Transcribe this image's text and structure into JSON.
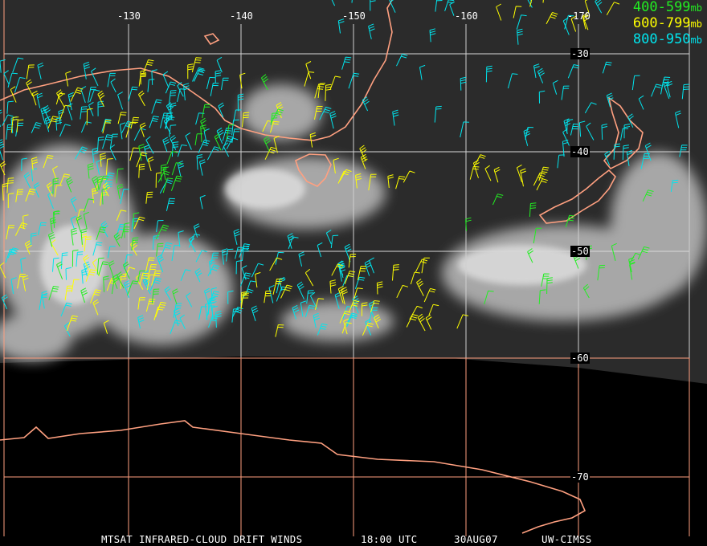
{
  "colors": {
    "grid": "#ff9f7f",
    "grid_light": "#dddddd",
    "coast": "#ffa080",
    "band_400_599": "#22ee22",
    "band_600_799": "#ffff00",
    "band_800_950": "#00e5ee",
    "cloud": "#c8c8c8",
    "ocean": "#2a2a2a"
  },
  "longitude_labels": [
    "-130",
    "-140",
    "-150",
    "-160",
    "-170"
  ],
  "latitude_labels": [
    "-30",
    "-40",
    "-50",
    "-60",
    "-70"
  ],
  "legend": [
    {
      "range": "400-599",
      "unit": "mb",
      "color": "#22ee22"
    },
    {
      "range": "600-799",
      "unit": "mb",
      "color": "#ffff00"
    },
    {
      "range": "800-950",
      "unit": "mb",
      "color": "#00e5ee"
    }
  ],
  "caption": {
    "product": "MTSAT INFRARED-CLOUD DRIFT WINDS",
    "time": "18:00 UTC",
    "date": "30AUG07",
    "source": "UW-CIMSS"
  }
}
